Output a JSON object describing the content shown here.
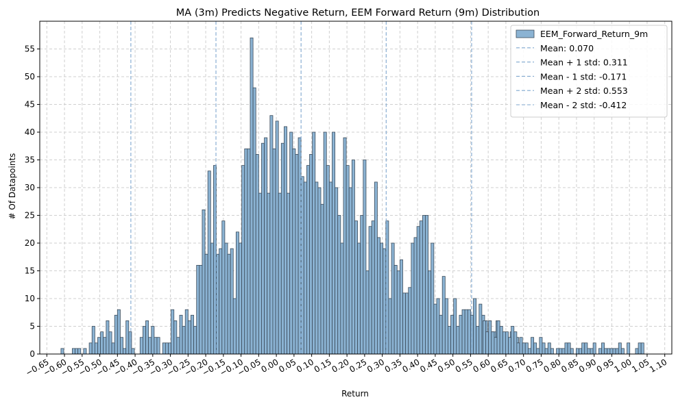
{
  "chart_data": {
    "type": "bar",
    "title": "MA (3m) Predicts Negative Return, EEM Forward Return (9m) Distribution",
    "xlabel": "Return",
    "ylabel": "# Of Datapoints",
    "xlim": [
      -0.67,
      1.12
    ],
    "ylim": [
      0,
      60
    ],
    "grid": true,
    "legend_position": "top-right",
    "bar_color": "#8bb3d3",
    "bar_edge_color": "#3b4a59",
    "line_color": "#7fa7cf",
    "x_ticks": [
      -0.65,
      -0.6,
      -0.55,
      -0.5,
      -0.45,
      -0.4,
      -0.35,
      -0.3,
      -0.25,
      -0.2,
      -0.15,
      -0.1,
      -0.05,
      0.0,
      0.05,
      0.1,
      0.15,
      0.2,
      0.25,
      0.3,
      0.35,
      0.4,
      0.45,
      0.5,
      0.55,
      0.6,
      0.65,
      0.7,
      0.75,
      0.8,
      0.85,
      0.9,
      0.95,
      1.0,
      1.05,
      1.1
    ],
    "x_tick_labels": [
      "−0.65",
      "−0.60",
      "−0.55",
      "−0.50",
      "−0.45",
      "−0.40",
      "−0.35",
      "−0.30",
      "−0.25",
      "−0.20",
      "−0.15",
      "−0.10",
      "−0.05",
      "0.00",
      "0.05",
      "0.10",
      "0.15",
      "0.20",
      "0.25",
      "0.30",
      "0.35",
      "0.40",
      "0.45",
      "0.50",
      "0.55",
      "0.60",
      "0.65",
      "0.70",
      "0.75",
      "0.80",
      "0.85",
      "0.90",
      "0.95",
      "1.00",
      "1.05",
      "1.10"
    ],
    "y_ticks": [
      0,
      5,
      10,
      15,
      20,
      25,
      30,
      35,
      40,
      45,
      50,
      55
    ],
    "y_tick_labels": [
      "0",
      "5",
      "10",
      "15",
      "20",
      "25",
      "30",
      "35",
      "40",
      "45",
      "50",
      "55"
    ],
    "bin_start": -0.61,
    "bin_width": 0.008,
    "series": [
      {
        "name": "EEM_Forward_Return_9m",
        "values": [
          1,
          0,
          0,
          0,
          1,
          1,
          1,
          0,
          1,
          0,
          2,
          5,
          2,
          3,
          4,
          3,
          6,
          4,
          2,
          7,
          8,
          3,
          1,
          6,
          4,
          1,
          0,
          0,
          3,
          5,
          6,
          3,
          5,
          3,
          3,
          0,
          2,
          2,
          2,
          8,
          6,
          3,
          7,
          5,
          8,
          6,
          7,
          5,
          16,
          16,
          26,
          18,
          33,
          20,
          34,
          18,
          19,
          24,
          20,
          18,
          19,
          10,
          22,
          20,
          34,
          37,
          37,
          57,
          48,
          36,
          29,
          38,
          39,
          29,
          43,
          37,
          42,
          29,
          38,
          41,
          29,
          40,
          37,
          36,
          39,
          32,
          31,
          34,
          36,
          40,
          31,
          30,
          27,
          40,
          34,
          31,
          40,
          30,
          25,
          20,
          39,
          34,
          30,
          35,
          24,
          20,
          25,
          35,
          15,
          23,
          24,
          31,
          21,
          20,
          19,
          24,
          10,
          20,
          16,
          15,
          17,
          11,
          11,
          12,
          20,
          21,
          23,
          24,
          25,
          25,
          15,
          20,
          9,
          10,
          7,
          14,
          10,
          5,
          7,
          10,
          5,
          7,
          8,
          8,
          8,
          7,
          10,
          5,
          9,
          7,
          6,
          4,
          4,
          4,
          6,
          4,
          1,
          2,
          1,
          4,
          1,
          3,
          1,
          0,
          0,
          0,
          0,
          0,
          0,
          0,
          0,
          0,
          0,
          0
        ]
      }
    ],
    "reference_lines": [
      {
        "label": "Mean: 0.070",
        "x": 0.07
      },
      {
        "label": "Mean + 1 std: 0.311",
        "x": 0.311
      },
      {
        "label": "Mean - 1 std: -0.171",
        "x": -0.171
      },
      {
        "label": "Mean + 2 std: 0.553",
        "x": 0.553
      },
      {
        "label": "Mean - 2 std: -0.412",
        "x": -0.412
      }
    ],
    "tail_bars": [
      {
        "x": 0.585,
        "value": 6
      },
      {
        "x": 0.593,
        "value": 4
      },
      {
        "x": 0.601,
        "value": 6
      },
      {
        "x": 0.609,
        "value": 4
      },
      {
        "x": 0.617,
        "value": 3
      },
      {
        "x": 0.625,
        "value": 6
      },
      {
        "x": 0.633,
        "value": 5
      },
      {
        "x": 0.641,
        "value": 4
      },
      {
        "x": 0.649,
        "value": 4
      },
      {
        "x": 0.657,
        "value": 3
      },
      {
        "x": 0.665,
        "value": 5
      },
      {
        "x": 0.673,
        "value": 4
      },
      {
        "x": 0.681,
        "value": 2
      },
      {
        "x": 0.689,
        "value": 3
      },
      {
        "x": 0.697,
        "value": 2
      },
      {
        "x": 0.705,
        "value": 2
      },
      {
        "x": 0.713,
        "value": 1
      },
      {
        "x": 0.721,
        "value": 3
      },
      {
        "x": 0.729,
        "value": 2
      },
      {
        "x": 0.737,
        "value": 1
      },
      {
        "x": 0.745,
        "value": 3
      },
      {
        "x": 0.753,
        "value": 2
      },
      {
        "x": 0.761,
        "value": 1
      },
      {
        "x": 0.769,
        "value": 2
      },
      {
        "x": 0.777,
        "value": 1
      },
      {
        "x": 0.785,
        "value": 0
      },
      {
        "x": 0.793,
        "value": 1
      },
      {
        "x": 0.801,
        "value": 1
      },
      {
        "x": 0.809,
        "value": 1
      },
      {
        "x": 0.817,
        "value": 2
      },
      {
        "x": 0.825,
        "value": 2
      },
      {
        "x": 0.833,
        "value": 1
      },
      {
        "x": 0.841,
        "value": 0
      },
      {
        "x": 0.849,
        "value": 1
      },
      {
        "x": 0.857,
        "value": 1
      },
      {
        "x": 0.865,
        "value": 2
      },
      {
        "x": 0.873,
        "value": 2
      },
      {
        "x": 0.881,
        "value": 1
      },
      {
        "x": 0.889,
        "value": 1
      },
      {
        "x": 0.897,
        "value": 2
      },
      {
        "x": 0.905,
        "value": 0
      },
      {
        "x": 0.913,
        "value": 1
      },
      {
        "x": 0.921,
        "value": 2
      },
      {
        "x": 0.929,
        "value": 1
      },
      {
        "x": 0.937,
        "value": 1
      },
      {
        "x": 0.945,
        "value": 1
      },
      {
        "x": 0.953,
        "value": 1
      },
      {
        "x": 0.961,
        "value": 1
      },
      {
        "x": 0.969,
        "value": 2
      },
      {
        "x": 0.977,
        "value": 1
      },
      {
        "x": 0.985,
        "value": 0
      },
      {
        "x": 0.993,
        "value": 2
      },
      {
        "x": 1.001,
        "value": 0
      },
      {
        "x": 1.009,
        "value": 0
      },
      {
        "x": 1.017,
        "value": 1
      },
      {
        "x": 1.025,
        "value": 2
      },
      {
        "x": 1.033,
        "value": 2
      }
    ]
  }
}
